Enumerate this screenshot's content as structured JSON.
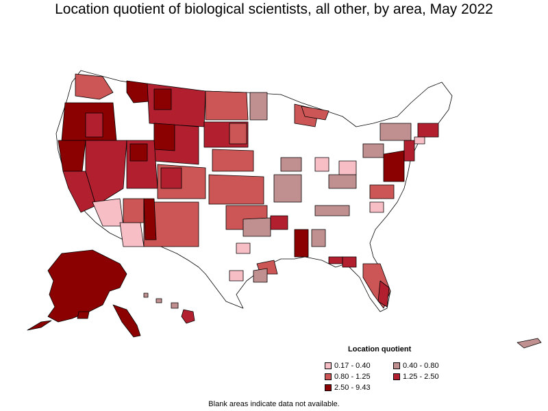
{
  "title": "Location quotient of biological scientists, all other, by area, May 2022",
  "legend": {
    "title": "Location quotient",
    "items": [
      {
        "label": "0.17 - 0.40",
        "color": "#f8bec6"
      },
      {
        "label": "0.40 - 0.80",
        "color": "#c08f8f"
      },
      {
        "label": "0.80 - 1.25",
        "color": "#cc5555"
      },
      {
        "label": "1.25 - 2.50",
        "color": "#b22030"
      },
      {
        "label": "2.50 - 9.43",
        "color": "#8b0000"
      }
    ]
  },
  "footnote": "Blank areas indicate data not available.",
  "colors": {
    "blank": "#ffffff",
    "border": "#000000"
  }
}
